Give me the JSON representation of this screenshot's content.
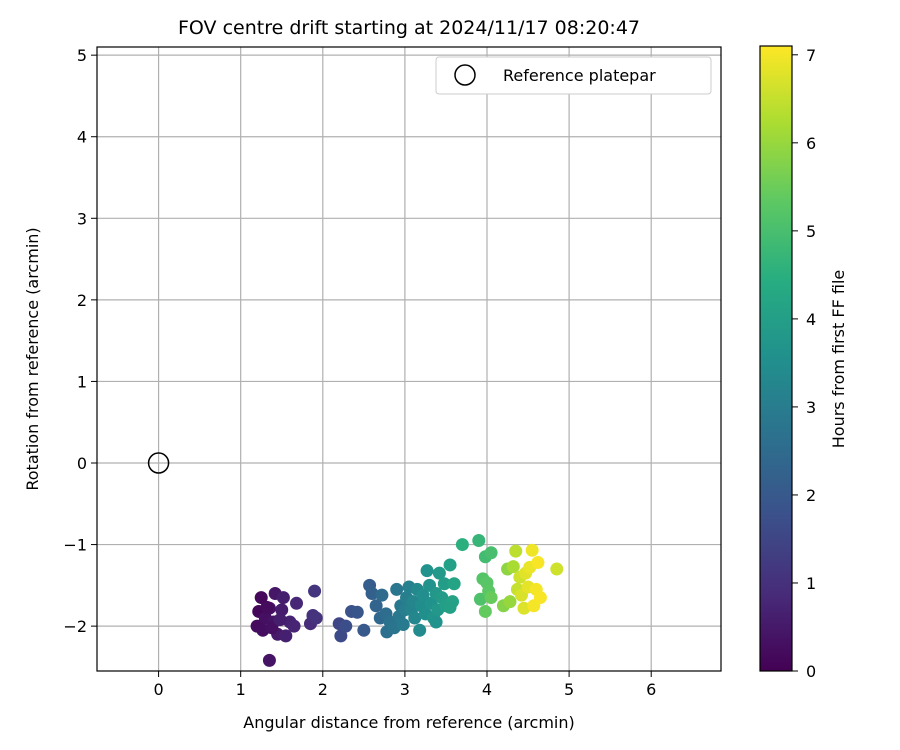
{
  "chart_data": {
    "type": "scatter",
    "title": "FOV centre drift starting at 2024/11/17 08:20:47",
    "xlabel": "Angular distance from reference (arcmin)",
    "ylabel": "Rotation from reference (arcmin)",
    "xlim": [
      -0.75,
      6.85
    ],
    "ylim": [
      -2.55,
      5.1
    ],
    "xticks": [
      0,
      1,
      2,
      3,
      4,
      5,
      6
    ],
    "yticks": [
      -2,
      -1,
      0,
      1,
      2,
      3,
      4,
      5
    ],
    "grid": true,
    "legend": {
      "placement": "top-right",
      "label": "Reference platepar"
    },
    "reference": {
      "x": 0,
      "y": 0
    },
    "colorbar": {
      "label": "Hours from first FF file",
      "colormap": "viridis",
      "range": [
        0,
        7.1
      ],
      "ticks": [
        0,
        1,
        2,
        3,
        4,
        5,
        6,
        7
      ]
    },
    "series": [
      {
        "points": [
          {
            "x": 1.22,
            "y": -1.82,
            "h": 0.1
          },
          {
            "x": 1.25,
            "y": -1.65,
            "h": 0.15
          },
          {
            "x": 1.2,
            "y": -2.0,
            "h": 0.2
          },
          {
            "x": 1.27,
            "y": -2.05,
            "h": 0.25
          },
          {
            "x": 1.3,
            "y": -1.9,
            "h": 0.3
          },
          {
            "x": 1.35,
            "y": -1.78,
            "h": 0.35
          },
          {
            "x": 1.4,
            "y": -1.95,
            "h": 0.4
          },
          {
            "x": 1.42,
            "y": -1.6,
            "h": 0.45
          },
          {
            "x": 1.45,
            "y": -2.1,
            "h": 0.5
          },
          {
            "x": 1.5,
            "y": -1.8,
            "h": 0.55
          },
          {
            "x": 1.52,
            "y": -1.65,
            "h": 0.6
          },
          {
            "x": 1.55,
            "y": -2.12,
            "h": 0.65
          },
          {
            "x": 1.6,
            "y": -1.95,
            "h": 0.7
          },
          {
            "x": 1.65,
            "y": -2.0,
            "h": 0.75
          },
          {
            "x": 1.68,
            "y": -1.72,
            "h": 0.8
          },
          {
            "x": 1.35,
            "y": -2.42,
            "h": 0.4
          },
          {
            "x": 1.38,
            "y": -2.02,
            "h": 0.3
          },
          {
            "x": 1.32,
            "y": -1.77,
            "h": 0.2
          },
          {
            "x": 1.48,
            "y": -1.92,
            "h": 0.6
          },
          {
            "x": 1.85,
            "y": -1.97,
            "h": 0.9
          },
          {
            "x": 1.88,
            "y": -1.87,
            "h": 1.0
          },
          {
            "x": 1.9,
            "y": -1.57,
            "h": 1.1
          },
          {
            "x": 1.92,
            "y": -1.9,
            "h": 1.05
          },
          {
            "x": 2.2,
            "y": -1.97,
            "h": 1.5
          },
          {
            "x": 2.22,
            "y": -2.12,
            "h": 1.6
          },
          {
            "x": 2.28,
            "y": -2.0,
            "h": 1.7
          },
          {
            "x": 2.35,
            "y": -1.82,
            "h": 1.8
          },
          {
            "x": 2.42,
            "y": -1.83,
            "h": 1.9
          },
          {
            "x": 2.5,
            "y": -2.05,
            "h": 2.0
          },
          {
            "x": 2.57,
            "y": -1.5,
            "h": 2.1
          },
          {
            "x": 2.6,
            "y": -1.6,
            "h": 2.2
          },
          {
            "x": 2.65,
            "y": -1.75,
            "h": 2.3
          },
          {
            "x": 2.7,
            "y": -1.9,
            "h": 2.4
          },
          {
            "x": 2.72,
            "y": -1.62,
            "h": 2.5
          },
          {
            "x": 2.77,
            "y": -1.85,
            "h": 2.55
          },
          {
            "x": 2.78,
            "y": -2.07,
            "h": 2.6
          },
          {
            "x": 2.82,
            "y": -1.95,
            "h": 2.7
          },
          {
            "x": 2.87,
            "y": -2.02,
            "h": 2.75
          },
          {
            "x": 2.9,
            "y": -1.55,
            "h": 2.8
          },
          {
            "x": 2.93,
            "y": -1.88,
            "h": 2.85
          },
          {
            "x": 2.95,
            "y": -1.75,
            "h": 2.9
          },
          {
            "x": 2.98,
            "y": -1.98,
            "h": 2.95
          },
          {
            "x": 3.0,
            "y": -1.8,
            "h": 3.0
          },
          {
            "x": 3.02,
            "y": -1.65,
            "h": 3.05
          },
          {
            "x": 3.05,
            "y": -1.52,
            "h": 3.1
          },
          {
            "x": 3.08,
            "y": -1.8,
            "h": 3.2
          },
          {
            "x": 3.1,
            "y": -1.7,
            "h": 3.25
          },
          {
            "x": 3.12,
            "y": -1.9,
            "h": 3.3
          },
          {
            "x": 3.15,
            "y": -1.55,
            "h": 3.35
          },
          {
            "x": 3.18,
            "y": -2.05,
            "h": 3.4
          },
          {
            "x": 3.2,
            "y": -1.75,
            "h": 3.45
          },
          {
            "x": 3.22,
            "y": -1.62,
            "h": 3.5
          },
          {
            "x": 3.25,
            "y": -1.85,
            "h": 3.55
          },
          {
            "x": 3.27,
            "y": -1.32,
            "h": 3.6
          },
          {
            "x": 3.3,
            "y": -1.5,
            "h": 3.6
          },
          {
            "x": 3.32,
            "y": -1.72,
            "h": 3.65
          },
          {
            "x": 3.35,
            "y": -1.9,
            "h": 3.7
          },
          {
            "x": 3.38,
            "y": -1.6,
            "h": 3.75
          },
          {
            "x": 3.4,
            "y": -1.8,
            "h": 3.8
          },
          {
            "x": 3.42,
            "y": -1.35,
            "h": 3.85
          },
          {
            "x": 3.45,
            "y": -1.65,
            "h": 3.9
          },
          {
            "x": 3.48,
            "y": -1.48,
            "h": 3.95
          },
          {
            "x": 3.5,
            "y": -1.75,
            "h": 4.0
          },
          {
            "x": 3.55,
            "y": -1.25,
            "h": 4.05
          },
          {
            "x": 3.58,
            "y": -1.7,
            "h": 4.1
          },
          {
            "x": 3.6,
            "y": -1.48,
            "h": 4.15
          },
          {
            "x": 3.55,
            "y": -1.77,
            "h": 4.05
          },
          {
            "x": 3.38,
            "y": -1.95,
            "h": 3.65
          },
          {
            "x": 3.7,
            "y": -1.0,
            "h": 4.5
          },
          {
            "x": 3.9,
            "y": -0.95,
            "h": 4.7
          },
          {
            "x": 3.98,
            "y": -1.15,
            "h": 4.9
          },
          {
            "x": 4.05,
            "y": -1.1,
            "h": 5.0
          },
          {
            "x": 3.92,
            "y": -1.67,
            "h": 5.1
          },
          {
            "x": 3.95,
            "y": -1.42,
            "h": 5.2
          },
          {
            "x": 4.0,
            "y": -1.47,
            "h": 5.25
          },
          {
            "x": 4.02,
            "y": -1.57,
            "h": 5.3
          },
          {
            "x": 3.98,
            "y": -1.82,
            "h": 5.4
          },
          {
            "x": 4.05,
            "y": -1.65,
            "h": 5.45
          },
          {
            "x": 4.2,
            "y": -1.75,
            "h": 5.8
          },
          {
            "x": 4.25,
            "y": -1.3,
            "h": 5.9
          },
          {
            "x": 4.28,
            "y": -1.7,
            "h": 6.0
          },
          {
            "x": 4.32,
            "y": -1.27,
            "h": 6.2
          },
          {
            "x": 4.35,
            "y": -1.08,
            "h": 6.4
          },
          {
            "x": 4.37,
            "y": -1.55,
            "h": 6.5
          },
          {
            "x": 4.4,
            "y": -1.4,
            "h": 6.6
          },
          {
            "x": 4.42,
            "y": -1.62,
            "h": 6.7
          },
          {
            "x": 4.45,
            "y": -1.78,
            "h": 6.75
          },
          {
            "x": 4.47,
            "y": -1.35,
            "h": 6.8
          },
          {
            "x": 4.5,
            "y": -1.52,
            "h": 6.85
          },
          {
            "x": 4.52,
            "y": -1.28,
            "h": 6.9
          },
          {
            "x": 4.55,
            "y": -1.07,
            "h": 6.95
          },
          {
            "x": 4.57,
            "y": -1.75,
            "h": 7.0
          },
          {
            "x": 4.6,
            "y": -1.55,
            "h": 7.0
          },
          {
            "x": 4.62,
            "y": -1.22,
            "h": 7.05
          },
          {
            "x": 4.65,
            "y": -1.65,
            "h": 7.05
          },
          {
            "x": 4.85,
            "y": -1.3,
            "h": 6.6
          }
        ]
      }
    ]
  }
}
